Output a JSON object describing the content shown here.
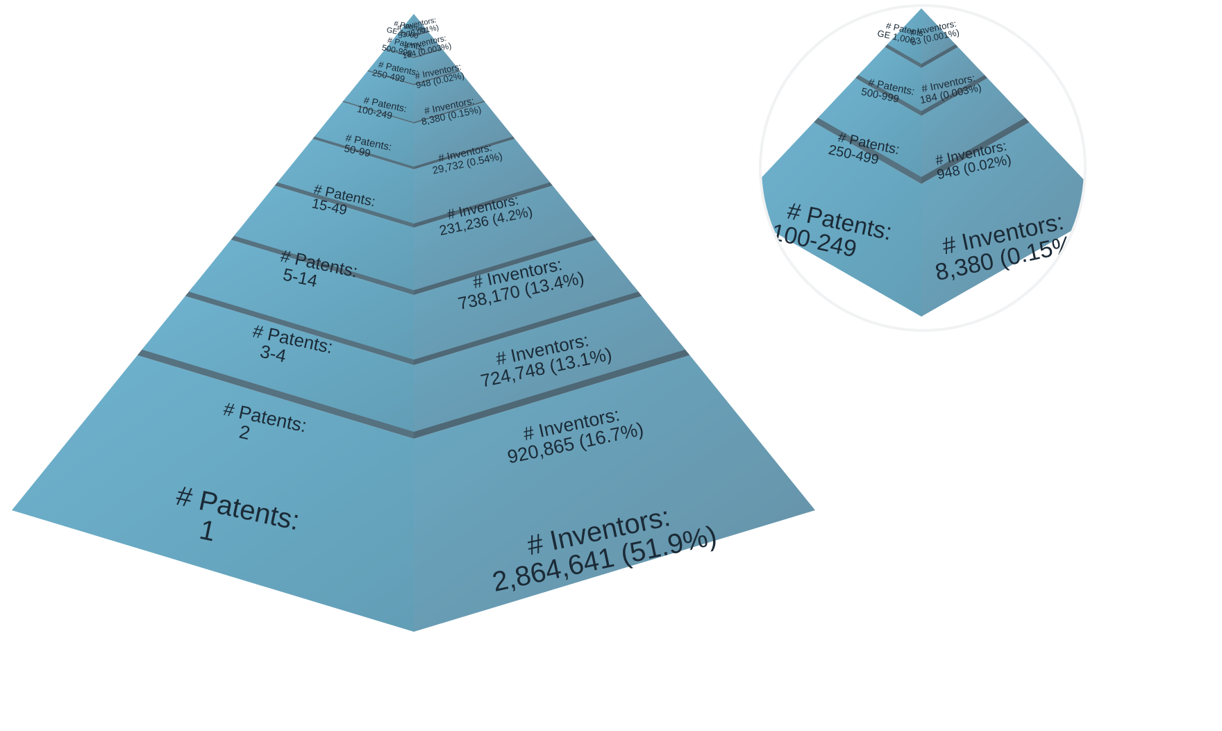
{
  "colors": {
    "face_left_light": "#6fb3cf",
    "face_left_dark": "#629eb6",
    "face_right_light": "#6aa9c3",
    "face_right_dark": "#6690a5",
    "band_left": "#56717f",
    "band_right": "#4f6876",
    "text": "#1b2a36",
    "inset_border": "#f1f2f3"
  },
  "tiers": [
    {
      "patents_label": "# Patents:",
      "patents_range": "1",
      "inventors_label": "# Inventors:",
      "inventors_value": "2,864,641 (51.9%)"
    },
    {
      "patents_label": "# Patents:",
      "patents_range": "2",
      "inventors_label": "# Inventors:",
      "inventors_value": "920,865 (16.7%)"
    },
    {
      "patents_label": "# Patents:",
      "patents_range": "3-4",
      "inventors_label": "# Inventors:",
      "inventors_value": "724,748 (13.1%)"
    },
    {
      "patents_label": "# Patents:",
      "patents_range": "5-14",
      "inventors_label": "# Inventors:",
      "inventors_value": "738,170 (13.4%)"
    },
    {
      "patents_label": "# Patents:",
      "patents_range": "15-49",
      "inventors_label": "# Inventors:",
      "inventors_value": "231,236 (4.2%)"
    },
    {
      "patents_label": "# Patents:",
      "patents_range": "50-99",
      "inventors_label": "# Inventors:",
      "inventors_value": "29,732 (0.54%)"
    },
    {
      "patents_label": "# Patents:",
      "patents_range": "100-249",
      "inventors_label": "# Inventors:",
      "inventors_value": "8,380 (0.15%)"
    },
    {
      "patents_label": "# Patents:",
      "patents_range": "250-499",
      "inventors_label": "# Inventors:",
      "inventors_value": "948 (0.02%)"
    },
    {
      "patents_label": "# Patents:",
      "patents_range": "500-999",
      "inventors_label": "# Inventors:",
      "inventors_value": "184 (0.003%)"
    },
    {
      "patents_label": "# Patents:",
      "patents_range": "GE 1,000",
      "inventors_label": "# Inventors:",
      "inventors_value": "53 (0.001%)"
    }
  ]
}
